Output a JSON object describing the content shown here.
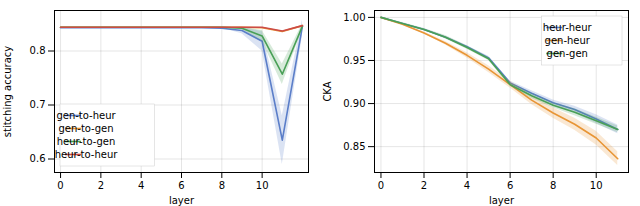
{
  "chart_data": [
    {
      "type": "line",
      "xlabel": "layer",
      "ylabel": "stitching accuracy",
      "x": [
        0,
        1,
        2,
        3,
        4,
        5,
        6,
        7,
        8,
        9,
        10,
        11,
        12
      ],
      "xlim": [
        -0.3,
        12.3
      ],
      "ylim": [
        0.575,
        0.875
      ],
      "xticks": [
        0,
        2,
        4,
        6,
        8,
        10
      ],
      "yticks": [
        0.6,
        0.7,
        0.8
      ],
      "grid": true,
      "legend": "lower left",
      "series": [
        {
          "name": "gen-to-heur",
          "color": "#5b7ec9",
          "values": [
            0.843,
            0.843,
            0.843,
            0.843,
            0.843,
            0.843,
            0.843,
            0.843,
            0.842,
            0.838,
            0.818,
            0.635,
            0.846
          ],
          "low": [
            0.843,
            0.843,
            0.843,
            0.843,
            0.843,
            0.843,
            0.843,
            0.843,
            0.842,
            0.832,
            0.8,
            0.59,
            0.828
          ],
          "high": [
            0.843,
            0.843,
            0.843,
            0.843,
            0.843,
            0.843,
            0.843,
            0.843,
            0.842,
            0.844,
            0.836,
            0.68,
            0.858
          ]
        },
        {
          "name": "gen-to-gen",
          "color": "#e89535",
          "values": [
            0.844,
            0.844,
            0.844,
            0.844,
            0.844,
            0.844,
            0.844,
            0.844,
            0.844,
            0.844,
            0.843,
            0.836,
            0.847
          ],
          "low": [
            0.844,
            0.844,
            0.844,
            0.844,
            0.844,
            0.844,
            0.844,
            0.844,
            0.844,
            0.844,
            0.843,
            0.836,
            0.847
          ],
          "high": [
            0.844,
            0.844,
            0.844,
            0.844,
            0.844,
            0.844,
            0.844,
            0.844,
            0.844,
            0.844,
            0.843,
            0.836,
            0.847
          ]
        },
        {
          "name": "heur-to-gen",
          "color": "#4aa057",
          "values": [
            0.844,
            0.844,
            0.844,
            0.844,
            0.844,
            0.844,
            0.844,
            0.844,
            0.844,
            0.842,
            0.828,
            0.757,
            0.846
          ],
          "low": [
            0.844,
            0.844,
            0.844,
            0.844,
            0.844,
            0.844,
            0.844,
            0.844,
            0.844,
            0.84,
            0.818,
            0.738,
            0.84
          ],
          "high": [
            0.844,
            0.844,
            0.844,
            0.844,
            0.844,
            0.844,
            0.844,
            0.844,
            0.844,
            0.844,
            0.838,
            0.776,
            0.85
          ]
        },
        {
          "name": "heur-to-heur",
          "color": "#cc4b45",
          "values": [
            0.844,
            0.844,
            0.844,
            0.844,
            0.844,
            0.844,
            0.844,
            0.844,
            0.844,
            0.844,
            0.844,
            0.837,
            0.847
          ],
          "low": [
            0.844,
            0.844,
            0.844,
            0.844,
            0.844,
            0.844,
            0.844,
            0.844,
            0.844,
            0.844,
            0.844,
            0.837,
            0.847
          ],
          "high": [
            0.844,
            0.844,
            0.844,
            0.844,
            0.844,
            0.844,
            0.844,
            0.844,
            0.844,
            0.844,
            0.844,
            0.837,
            0.847
          ]
        }
      ]
    },
    {
      "type": "line",
      "xlabel": "layer",
      "ylabel": "CKA",
      "x": [
        0,
        1,
        2,
        3,
        4,
        5,
        6,
        7,
        8,
        9,
        10,
        11
      ],
      "xlim": [
        -0.3,
        11.5
      ],
      "ylim": [
        0.82,
        1.008
      ],
      "xticks": [
        0,
        2,
        4,
        6,
        8,
        10
      ],
      "yticks": [
        0.85,
        {
          "value": 0.9,
          "label": "0.90"
        },
        0.95,
        {
          "value": 1,
          "label": "1.00"
        }
      ],
      "grid": true,
      "legend": "upper right",
      "series": [
        {
          "name": "heur-heur",
          "color": "#5b7ec9",
          "values": [
            1.0,
            0.993,
            0.986,
            0.977,
            0.966,
            0.953,
            0.924,
            0.912,
            0.901,
            0.893,
            0.882,
            0.87
          ],
          "low": [
            1.0,
            0.993,
            0.985,
            0.976,
            0.965,
            0.951,
            0.922,
            0.909,
            0.898,
            0.889,
            0.877,
            0.865
          ],
          "high": [
            1.0,
            0.993,
            0.987,
            0.978,
            0.967,
            0.955,
            0.926,
            0.915,
            0.904,
            0.897,
            0.887,
            0.875
          ]
        },
        {
          "name": "gen-heur",
          "color": "#e89535",
          "values": [
            1.0,
            0.992,
            0.982,
            0.97,
            0.956,
            0.94,
            0.922,
            0.904,
            0.889,
            0.876,
            0.86,
            0.836
          ],
          "low": [
            1.0,
            0.991,
            0.981,
            0.968,
            0.953,
            0.936,
            0.918,
            0.899,
            0.883,
            0.869,
            0.852,
            0.828
          ],
          "high": [
            1.0,
            0.993,
            0.983,
            0.972,
            0.959,
            0.944,
            0.926,
            0.909,
            0.895,
            0.883,
            0.868,
            0.844
          ]
        },
        {
          "name": "gen-gen",
          "color": "#4aa057",
          "values": [
            1.0,
            0.993,
            0.986,
            0.977,
            0.965,
            0.952,
            0.922,
            0.909,
            0.898,
            0.89,
            0.88,
            0.87
          ],
          "low": [
            1.0,
            0.992,
            0.985,
            0.975,
            0.963,
            0.95,
            0.92,
            0.906,
            0.895,
            0.886,
            0.876,
            0.866
          ],
          "high": [
            1.0,
            0.994,
            0.987,
            0.979,
            0.967,
            0.954,
            0.924,
            0.912,
            0.901,
            0.894,
            0.884,
            0.874
          ]
        }
      ]
    }
  ]
}
